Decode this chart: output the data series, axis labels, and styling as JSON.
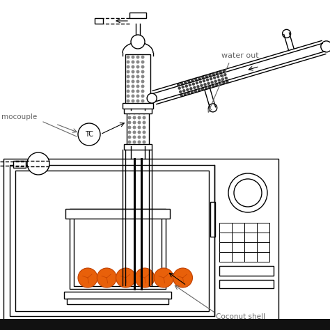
{
  "bg_color": "#ffffff",
  "line_color": "#000000",
  "orange_color": "#e8600a",
  "text_color": "#666666",
  "label_water_out": "water out",
  "label_thermocouple": "mocouple",
  "label_coconut": "Coconut shell",
  "label_tc": "TC"
}
